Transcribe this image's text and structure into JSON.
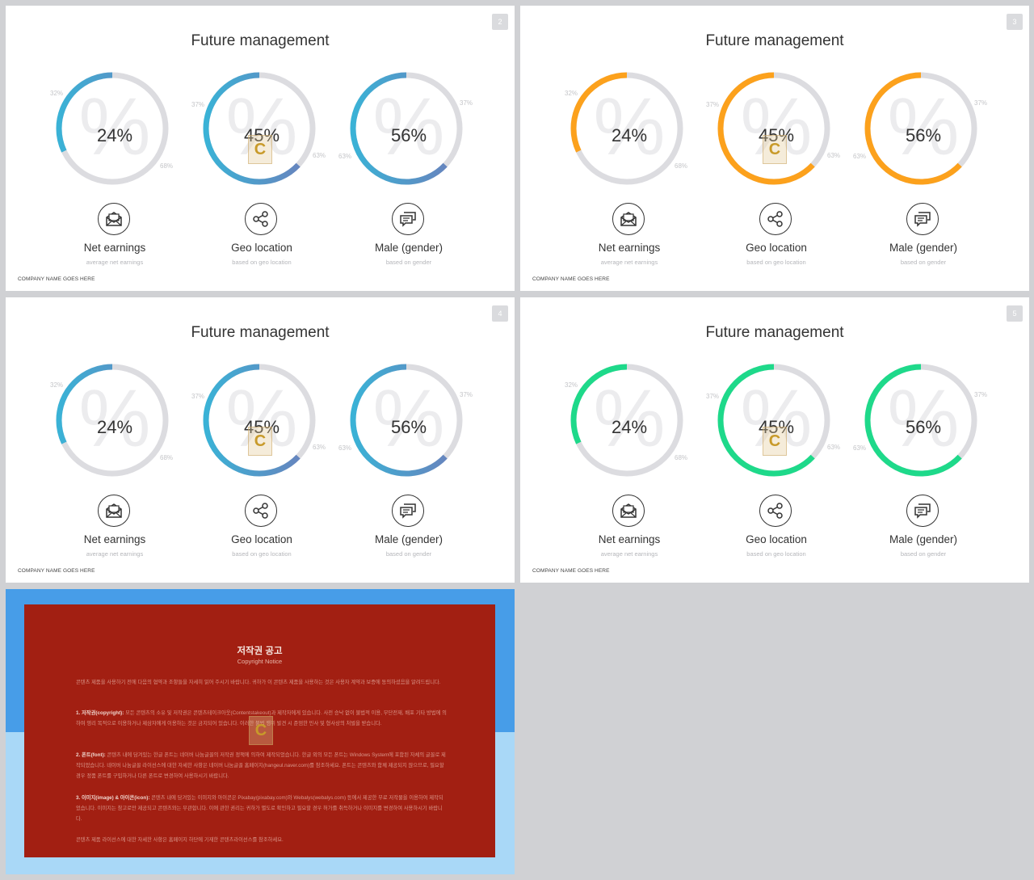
{
  "colors": {
    "track": "#dcdce0",
    "blue_a": "#6c7fbb",
    "blue_b": "#3ab2d6",
    "orange": "#fca11c",
    "green": "#1ed98a"
  },
  "slides": [
    {
      "number": "2",
      "title": "Future management",
      "footer": "COMPANY NAME GOES HERE",
      "scheme": "blue",
      "items": [
        {
          "value": "24%",
          "left_label": "32%",
          "right_label": "68%",
          "name": "Net earnings",
          "sub": "average net earnings",
          "icon": "envelope-icon",
          "fill": 0.32
        },
        {
          "value": "45%",
          "left_label": "37%",
          "right_label": "63%",
          "name": "Geo location",
          "sub": "based on geo location",
          "icon": "share-icon",
          "fill": 0.63
        },
        {
          "value": "56%",
          "left_label": "63%",
          "right_label": "37%",
          "name": "Male (gender)",
          "sub": "based on gender",
          "icon": "chat-icon",
          "fill": 0.63
        }
      ]
    },
    {
      "number": "3",
      "title": "Future management",
      "footer": "COMPANY NAME GOES HERE",
      "scheme": "orange",
      "items": [
        {
          "value": "24%",
          "left_label": "32%",
          "right_label": "68%",
          "name": "Net earnings",
          "sub": "average net earnings",
          "icon": "envelope-icon",
          "fill": 0.32
        },
        {
          "value": "45%",
          "left_label": "37%",
          "right_label": "63%",
          "name": "Geo location",
          "sub": "based on geo location",
          "icon": "share-icon",
          "fill": 0.63
        },
        {
          "value": "56%",
          "left_label": "63%",
          "right_label": "37%",
          "name": "Male (gender)",
          "sub": "based on gender",
          "icon": "chat-icon",
          "fill": 0.63
        }
      ]
    },
    {
      "number": "4",
      "title": "Future management",
      "footer": "COMPANY NAME GOES HERE",
      "scheme": "blue",
      "items": [
        {
          "value": "24%",
          "left_label": "32%",
          "right_label": "68%",
          "name": "Net earnings",
          "sub": "average net earnings",
          "icon": "envelope-icon",
          "fill": 0.32
        },
        {
          "value": "45%",
          "left_label": "37%",
          "right_label": "63%",
          "name": "Geo location",
          "sub": "based on geo location",
          "icon": "share-icon",
          "fill": 0.63
        },
        {
          "value": "56%",
          "left_label": "63%",
          "right_label": "37%",
          "name": "Male (gender)",
          "sub": "based on gender",
          "icon": "chat-icon",
          "fill": 0.63
        }
      ]
    },
    {
      "number": "5",
      "title": "Future management",
      "footer": "COMPANY NAME GOES HERE",
      "scheme": "green",
      "items": [
        {
          "value": "24%",
          "left_label": "32%",
          "right_label": "68%",
          "name": "Net earnings",
          "sub": "average net earnings",
          "icon": "envelope-icon",
          "fill": 0.32
        },
        {
          "value": "45%",
          "left_label": "37%",
          "right_label": "63%",
          "name": "Geo location",
          "sub": "based on geo location",
          "icon": "share-icon",
          "fill": 0.63
        },
        {
          "value": "56%",
          "left_label": "63%",
          "right_label": "37%",
          "name": "Male (gender)",
          "sub": "based on gender",
          "icon": "chat-icon",
          "fill": 0.63
        }
      ]
    }
  ],
  "copyright": {
    "title": "저작권 공고",
    "subtitle": "Copyright Notice",
    "intro": "콘텐츠 제품을 사용하기 전에 다음의 협약과 조항들을 자세히 읽어 주시기 바랍니다. 귀하가 이 콘텐츠 제품을 사용하는 것은 사용자 계약과 보증에 동의하셨음을 알려드립니다.",
    "p1_head": "1. 저작권(copyright):",
    "p1": " 모든 콘텐츠의 소유 및 저작권은 콘텐츠테이크아웃(Contentstakeout)과 제작자에게 있습니다. 사전 승낙 없이 불법적 이용, 무단전재, 배포 기타 방법에 의하여 영리 목적으로 이용하거나 제삼자에게 이용하는 것은 금지되어 있습니다. 이러한 불법 행위 발견 시 준엄한 민사 및 형사상의 처벌을 받습니다.",
    "p2_head": "2. 폰트(font):",
    "p2": " 콘텐츠 내에 담겨있는 한글 폰트는 네이버 나눔글꼴의 저작권 정책에 의하여 제작되었습니다. 한글 외의 모든 폰트는 Windows System에 포함된 자체의 글꼴로 제작되었습니다. 네이버 나눔글꼴 라이선스에 대한 자세한 사항은 네이버 나눔글꼴 홈페이지(hangeul.naver.com)를 참조하세요. 폰트는 콘텐츠와 함께 제공되지 않으므로, 필요할 경우 정품 폰트를 구입하거나 다른 폰트로 변경하여 사용하시기 바랍니다.",
    "p3_head": "3. 이미지(image) & 아이콘(icon):",
    "p3": " 콘텐츠 내에 담겨있는 이미지와 아이콘은 Pixabay(pixabay.com)와 Webalys(webalys.com) 등에서 제공한 무료 저작물을 이용하여 제작되었습니다. 이미지는 참고로만 제공되고 콘텐츠와는 무관합니다. 이에 관한 권리는 귀하가 별도로 확인하고 필요할 경우 허가를 취득하거나 이미지를 변경하여 사용하시기 바랍니다.",
    "outro": "콘텐츠 제품 라이선스에 대한 자세한 사항은 홈페이지 하단에 기재한 콘텐츠라이선스를 참조하세요."
  },
  "watermark_letter": "C"
}
